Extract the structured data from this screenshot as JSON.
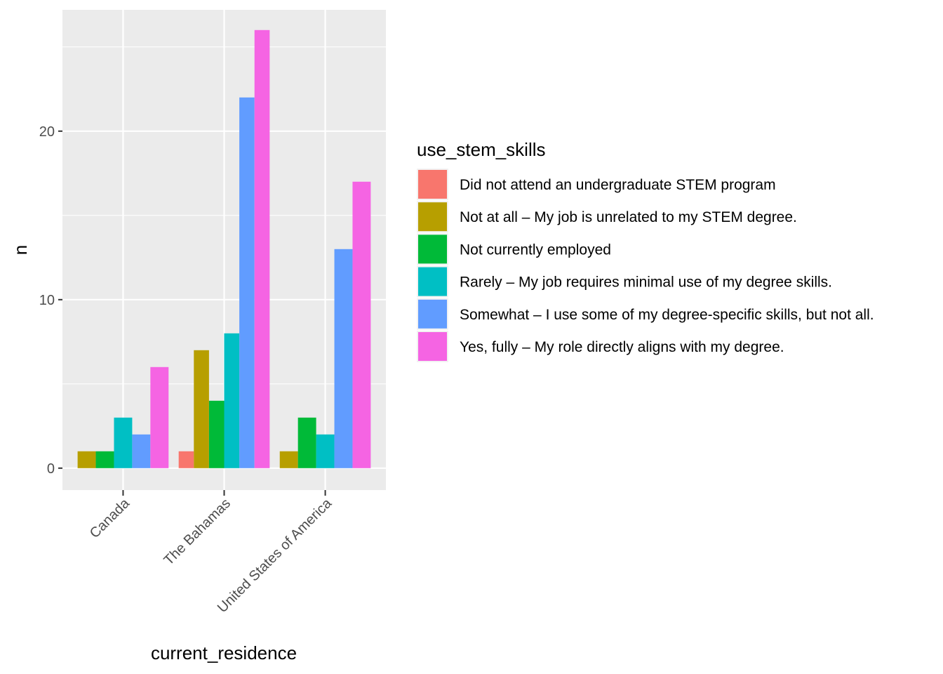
{
  "chart_data": {
    "type": "bar",
    "xlabel": "current_residence",
    "ylabel": "n",
    "ylim": [
      -1.3,
      27.2
    ],
    "yticks": [
      0,
      10,
      20
    ],
    "grid": true,
    "legend_position": "right",
    "legend_title": "use_stem_skills",
    "categories": [
      "Canada",
      "The Bahamas",
      "United States of America"
    ],
    "series": [
      {
        "name": "Did not attend an undergraduate STEM program",
        "color": "#F8766D",
        "values": [
          null,
          1,
          null
        ]
      },
      {
        "name": "Not at all – My job is unrelated to my STEM degree.",
        "color": "#B79F00",
        "values": [
          1,
          7,
          1
        ]
      },
      {
        "name": "Not currently employed",
        "color": "#00BA38",
        "values": [
          1,
          4,
          3
        ]
      },
      {
        "name": "Rarely – My job requires minimal use of my degree skills.",
        "color": "#00BFC4",
        "values": [
          3,
          8,
          2
        ]
      },
      {
        "name": "Somewhat – I use some of my degree-specific skills, but not all.",
        "color": "#619CFF",
        "values": [
          2,
          22,
          13
        ]
      },
      {
        "name": "Yes, fully – My role directly aligns with my degree.",
        "color": "#F564E3",
        "values": [
          6,
          26,
          17
        ]
      }
    ]
  }
}
